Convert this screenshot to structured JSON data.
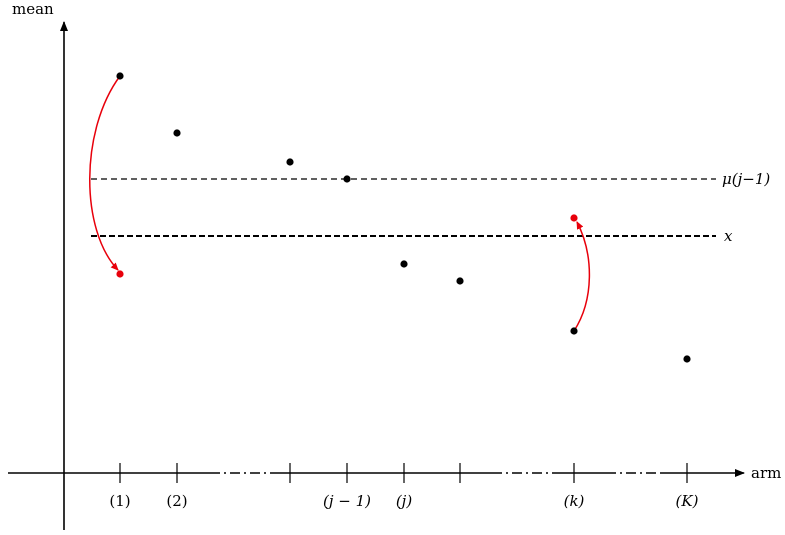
{
  "axes": {
    "y_label": "mean",
    "x_label": "arm"
  },
  "tick_labels": [
    "(1)",
    "(2)",
    "(j − 1)",
    "(j)",
    "(k)",
    "(K)"
  ],
  "thresholds": {
    "mu_label": "μ(j−1)",
    "x_label": "x"
  },
  "colors": {
    "axis": "#000000",
    "point": "#000000",
    "highlight": "#e8000b"
  },
  "arms": [
    {
      "id": "a1",
      "mean": 0.76,
      "moved_to": 0.39
    },
    {
      "id": "a2",
      "mean": 0.66
    },
    {
      "id": "a3",
      "mean": 0.61
    },
    {
      "id": "a4",
      "mean": 0.575
    },
    {
      "id": "a5",
      "mean": 0.425
    },
    {
      "id": "a6",
      "mean": 0.395
    },
    {
      "id": "a7",
      "mean": 0.265,
      "moved_to": 0.49
    },
    {
      "id": "a8",
      "mean": 0.215
    }
  ],
  "levels": {
    "mu": 0.575,
    "x": 0.475
  }
}
